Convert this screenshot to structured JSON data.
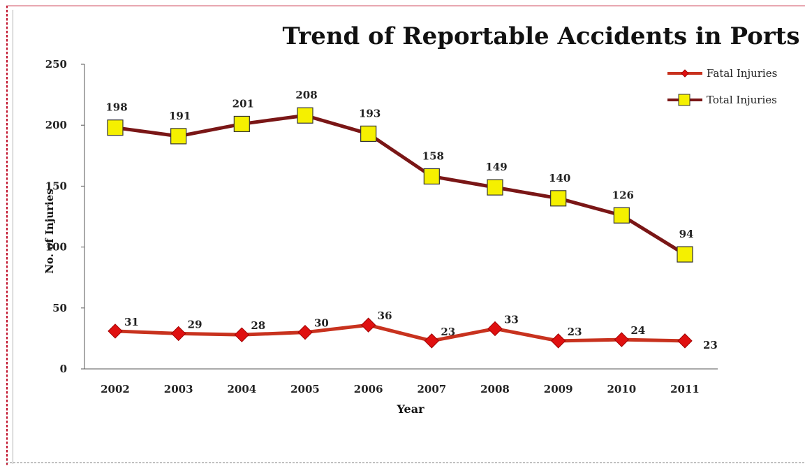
{
  "chart_data": {
    "type": "line",
    "title": "Trend of Reportable Accidents in Ports",
    "xlabel": "Year",
    "ylabel": "No. of Injuries",
    "categories": [
      "2002",
      "2003",
      "2004",
      "2005",
      "2006",
      "2007",
      "2008",
      "2009",
      "2010",
      "2011"
    ],
    "ylim": [
      0,
      250
    ],
    "yticks": [
      "0",
      "50",
      "100",
      "150",
      "200",
      "250"
    ],
    "grid": false,
    "legend_position": "top-right",
    "series": [
      {
        "name": "Fatal Injuries",
        "values": [
          31,
          29,
          28,
          30,
          36,
          23,
          33,
          23,
          24,
          23
        ],
        "line_color": "#c8321e",
        "marker": "diamond",
        "marker_color": "#e01010"
      },
      {
        "name": "Total Injuries",
        "values": [
          198,
          191,
          201,
          208,
          193,
          158,
          149,
          140,
          126,
          94
        ],
        "line_color": "#7a1616",
        "marker": "square",
        "marker_color": "#f5f000"
      }
    ]
  }
}
